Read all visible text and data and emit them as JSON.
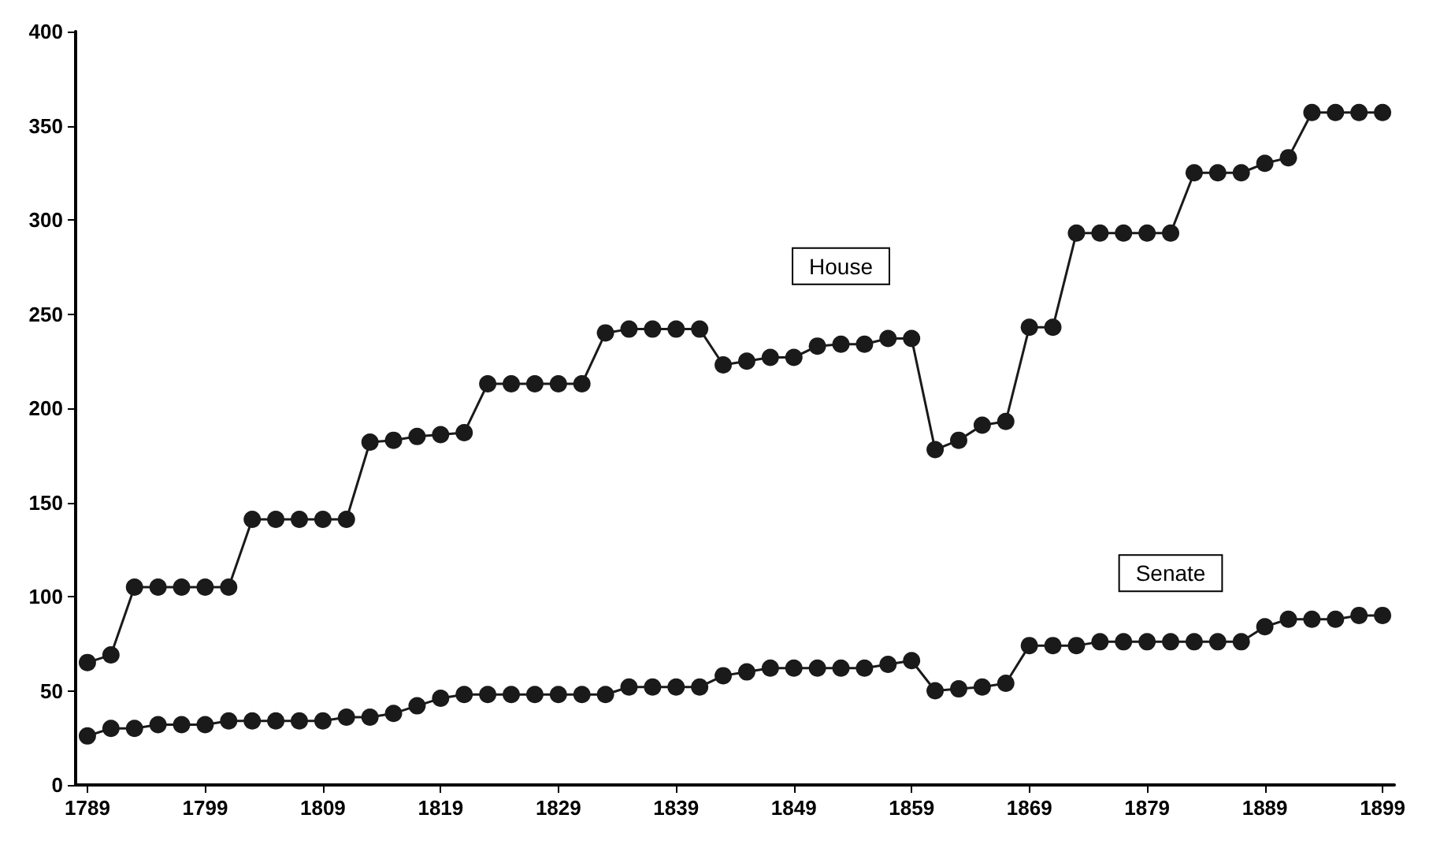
{
  "chart_data": {
    "type": "line",
    "marker": "circle",
    "grid": false,
    "legend": false,
    "x": [
      1789,
      1791,
      1793,
      1795,
      1797,
      1799,
      1801,
      1803,
      1805,
      1807,
      1809,
      1811,
      1813,
      1815,
      1817,
      1819,
      1821,
      1823,
      1825,
      1827,
      1829,
      1831,
      1833,
      1835,
      1837,
      1839,
      1841,
      1843,
      1845,
      1847,
      1849,
      1851,
      1853,
      1855,
      1857,
      1859,
      1861,
      1863,
      1865,
      1867,
      1869,
      1871,
      1873,
      1875,
      1877,
      1879,
      1881,
      1883,
      1885,
      1887,
      1889,
      1891,
      1893,
      1895,
      1897,
      1899
    ],
    "xlim": [
      1788,
      1900
    ],
    "xticks": [
      1789,
      1799,
      1809,
      1819,
      1829,
      1839,
      1849,
      1859,
      1869,
      1879,
      1889,
      1899
    ],
    "ylim": [
      0,
      400
    ],
    "yticks": [
      0,
      50,
      100,
      150,
      200,
      250,
      300,
      350,
      400
    ],
    "series": [
      {
        "name": "House",
        "color": "#1a1a1a",
        "values": [
          65,
          69,
          105,
          105,
          105,
          105,
          105,
          141,
          141,
          141,
          141,
          141,
          182,
          183,
          185,
          186,
          187,
          213,
          213,
          213,
          213,
          213,
          240,
          242,
          242,
          242,
          242,
          223,
          225,
          227,
          227,
          233,
          234,
          234,
          237,
          237,
          178,
          183,
          191,
          193,
          243,
          243,
          293,
          293,
          293,
          293,
          293,
          325,
          325,
          325,
          330,
          333,
          357,
          357,
          357,
          357
        ]
      },
      {
        "name": "Senate",
        "color": "#1a1a1a",
        "values": [
          26,
          30,
          30,
          32,
          32,
          32,
          34,
          34,
          34,
          34,
          34,
          36,
          36,
          38,
          42,
          46,
          48,
          48,
          48,
          48,
          48,
          48,
          48,
          52,
          52,
          52,
          52,
          58,
          60,
          62,
          62,
          62,
          62,
          62,
          64,
          66,
          50,
          51,
          52,
          54,
          74,
          74,
          74,
          76,
          76,
          76,
          76,
          76,
          76,
          76,
          84,
          88,
          88,
          88,
          90,
          90
        ]
      }
    ]
  }
}
